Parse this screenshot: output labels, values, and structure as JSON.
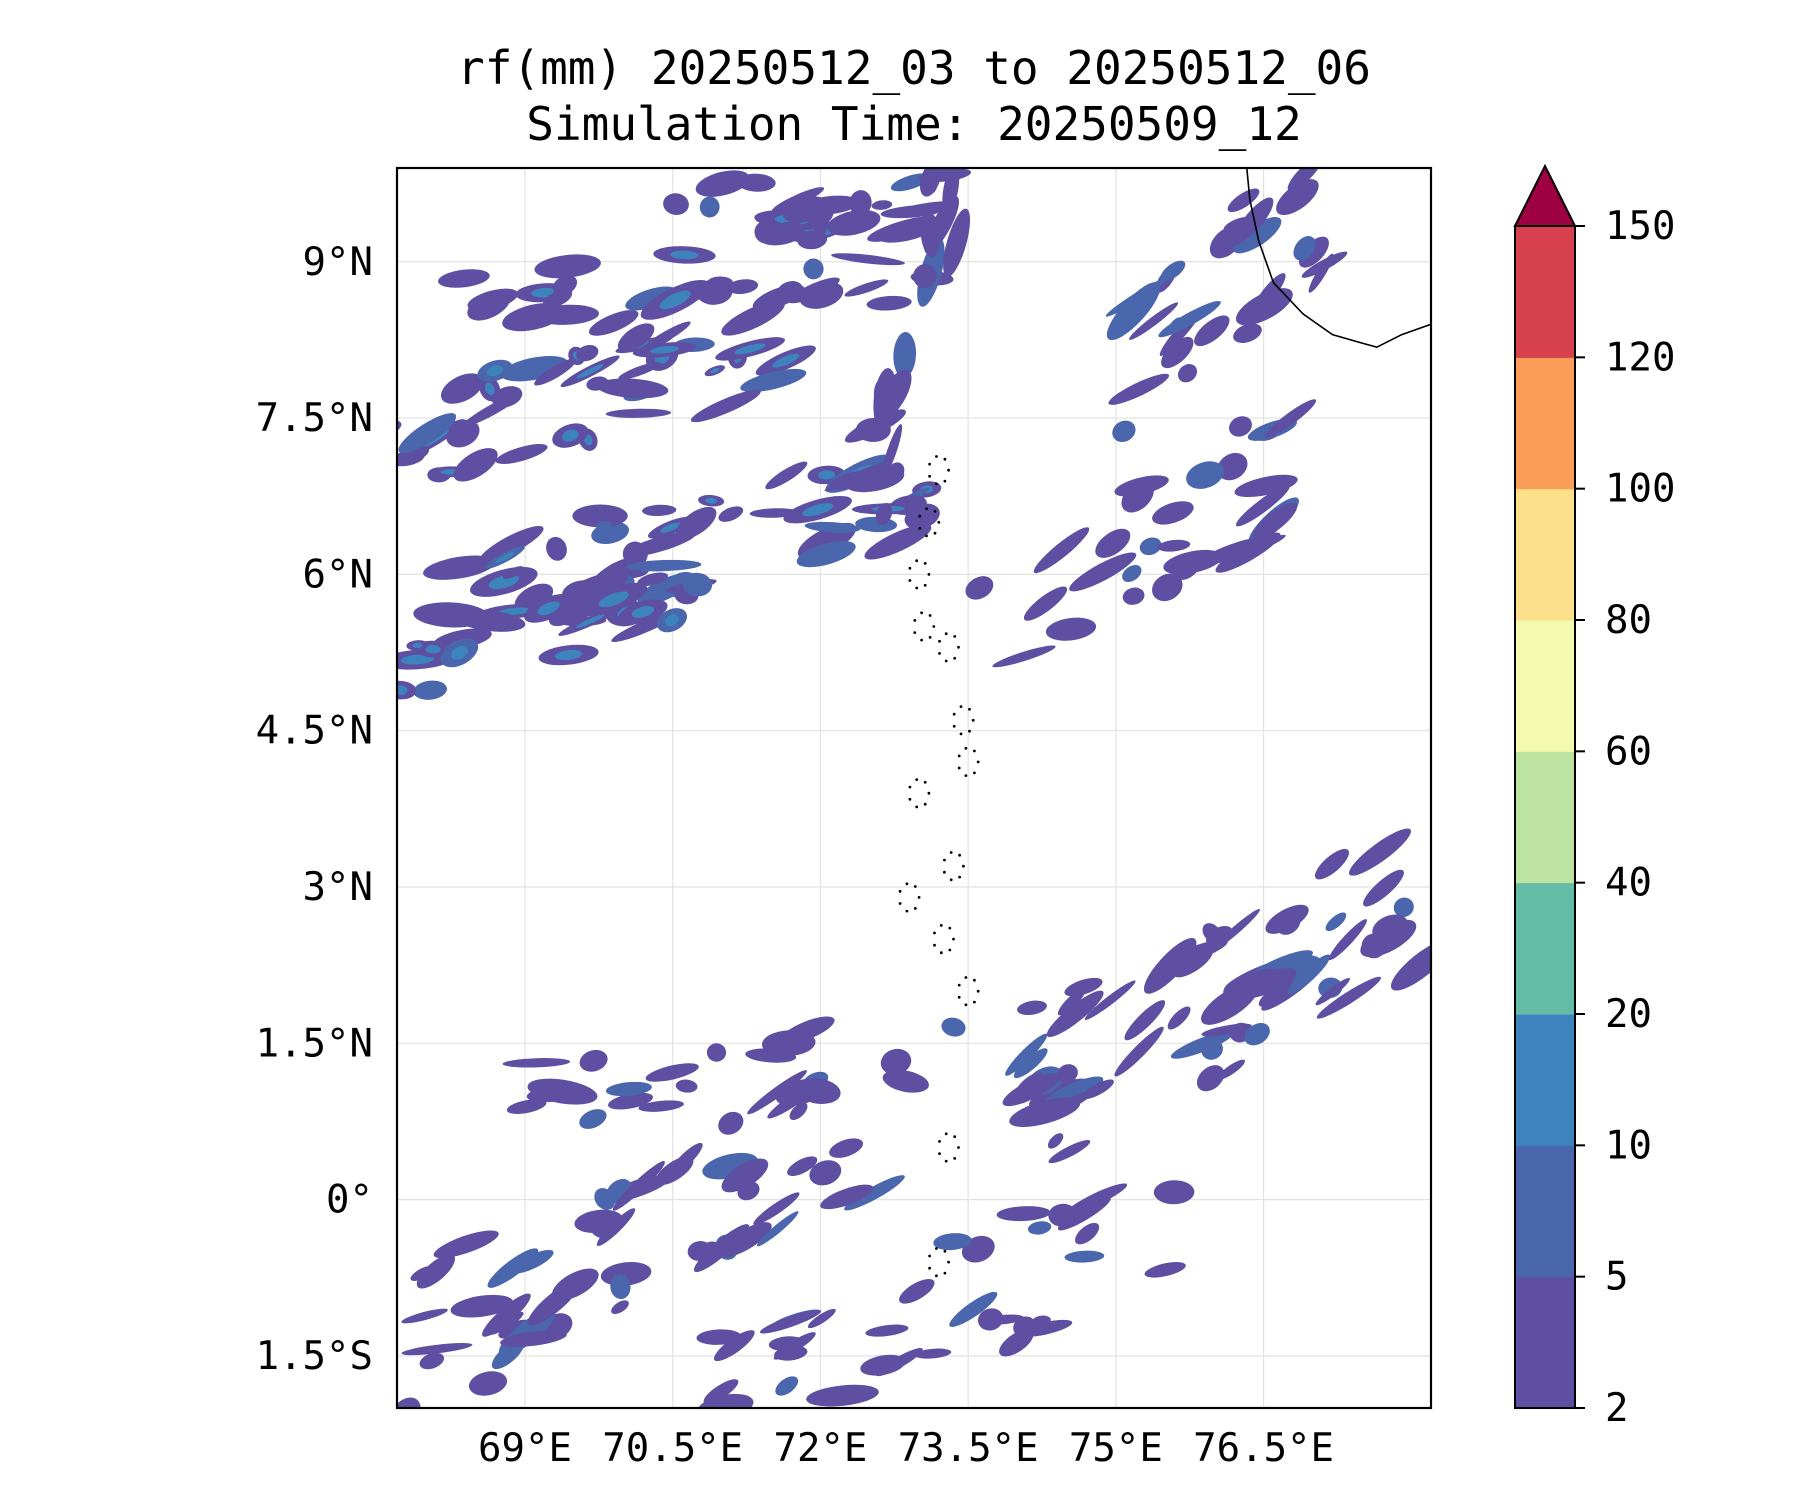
{
  "title": {
    "line1": "rf(mm) 20250512_03 to 20250512_06",
    "line2": "Simulation Time: 20250509_12"
  },
  "map": {
    "lon_range": [
      67.7,
      78.2
    ],
    "lat_range": [
      -2.0,
      9.9
    ],
    "x_ticks": [
      {
        "value": 69.0,
        "label": "69°E"
      },
      {
        "value": 70.5,
        "label": "70.5°E"
      },
      {
        "value": 72.0,
        "label": "72°E"
      },
      {
        "value": 73.5,
        "label": "73.5°E"
      },
      {
        "value": 75.0,
        "label": "75°E"
      },
      {
        "value": 76.5,
        "label": "76.5°E"
      }
    ],
    "y_ticks": [
      {
        "value": 9.0,
        "label": "9°N"
      },
      {
        "value": 7.5,
        "label": "7.5°N"
      },
      {
        "value": 6.0,
        "label": "6°N"
      },
      {
        "value": 4.5,
        "label": "4.5°N"
      },
      {
        "value": 3.0,
        "label": "3°N"
      },
      {
        "value": 1.5,
        "label": "1.5°N"
      },
      {
        "value": 0.0,
        "label": "0°"
      },
      {
        "value": -1.5,
        "label": "1.5°S"
      }
    ],
    "gridlines": true,
    "rain_bands": [
      {
        "lon0": 67.7,
        "lat0": 8.2,
        "lon1": 73.0,
        "lat1": 9.2,
        "width": 1.2,
        "count": 45,
        "seed": 11
      },
      {
        "lon0": 67.7,
        "lat0": 7.3,
        "lon1": 72.0,
        "lat1": 8.3,
        "width": 1.0,
        "count": 35,
        "seed": 12
      },
      {
        "lon0": 68.2,
        "lat0": 5.7,
        "lon1": 73.2,
        "lat1": 7.0,
        "width": 1.1,
        "count": 50,
        "seed": 13
      },
      {
        "lon0": 67.7,
        "lat0": 5.2,
        "lon1": 70.8,
        "lat1": 5.9,
        "width": 0.8,
        "count": 22,
        "seed": 14
      },
      {
        "lon0": 72.6,
        "lat0": 7.0,
        "lon1": 73.3,
        "lat1": 9.8,
        "width": 1.0,
        "count": 18,
        "seed": 15
      },
      {
        "lon0": 70.5,
        "lat0": 9.4,
        "lon1": 73.2,
        "lat1": 9.8,
        "width": 0.6,
        "count": 14,
        "seed": 16
      },
      {
        "lon0": 75.2,
        "lat0": 8.0,
        "lon1": 77.2,
        "lat1": 9.6,
        "width": 1.4,
        "count": 28,
        "seed": 17
      },
      {
        "lon0": 73.6,
        "lat0": 5.6,
        "lon1": 77.3,
        "lat1": 7.2,
        "width": 1.3,
        "count": 30,
        "seed": 18
      },
      {
        "lon0": 74.0,
        "lat0": 0.9,
        "lon1": 78.2,
        "lat1": 3.0,
        "width": 1.6,
        "count": 60,
        "seed": 19
      },
      {
        "lon0": 67.7,
        "lat0": -1.5,
        "lon1": 72.5,
        "lat1": 0.8,
        "width": 1.5,
        "count": 55,
        "seed": 20
      },
      {
        "lon0": 70.5,
        "lat0": -2.0,
        "lon1": 75.5,
        "lat1": -0.3,
        "width": 1.2,
        "count": 40,
        "seed": 21
      },
      {
        "lon0": 69.0,
        "lat0": 1.0,
        "lon1": 73.5,
        "lat1": 1.5,
        "width": 0.6,
        "count": 20,
        "seed": 22
      }
    ],
    "coast_kerala": [
      [
        76.33,
        9.9
      ],
      [
        76.36,
        9.6
      ],
      [
        76.45,
        9.2
      ],
      [
        76.6,
        8.8
      ],
      [
        76.9,
        8.5
      ],
      [
        77.2,
        8.3
      ],
      [
        77.5,
        8.22
      ],
      [
        77.65,
        8.18
      ],
      [
        77.9,
        8.3
      ],
      [
        78.2,
        8.4
      ]
    ],
    "maldives_atolls": [
      [
        73.2,
        7.0
      ],
      [
        73.1,
        6.5
      ],
      [
        73.0,
        6.0
      ],
      [
        73.05,
        5.5
      ],
      [
        73.3,
        5.3
      ],
      [
        73.45,
        4.6
      ],
      [
        73.5,
        4.2
      ],
      [
        73.0,
        3.9
      ],
      [
        73.35,
        3.2
      ],
      [
        72.9,
        2.9
      ],
      [
        73.25,
        2.5
      ],
      [
        73.5,
        2.0
      ],
      [
        73.3,
        0.5
      ],
      [
        73.2,
        -0.6
      ]
    ]
  },
  "colorbar": {
    "levels": [
      2,
      5,
      10,
      20,
      40,
      60,
      80,
      100,
      120,
      150
    ],
    "colors": [
      "#5e4fa2",
      "#4a66ac",
      "#3d84be",
      "#63bca5",
      "#bce4a0",
      "#f3f9ae",
      "#fde08b",
      "#f99d59",
      "#d7404e"
    ],
    "extend_color": "#9e0142",
    "extend": "max",
    "labels": [
      "2",
      "5",
      "10",
      "20",
      "40",
      "60",
      "80",
      "100",
      "120",
      "150"
    ]
  }
}
